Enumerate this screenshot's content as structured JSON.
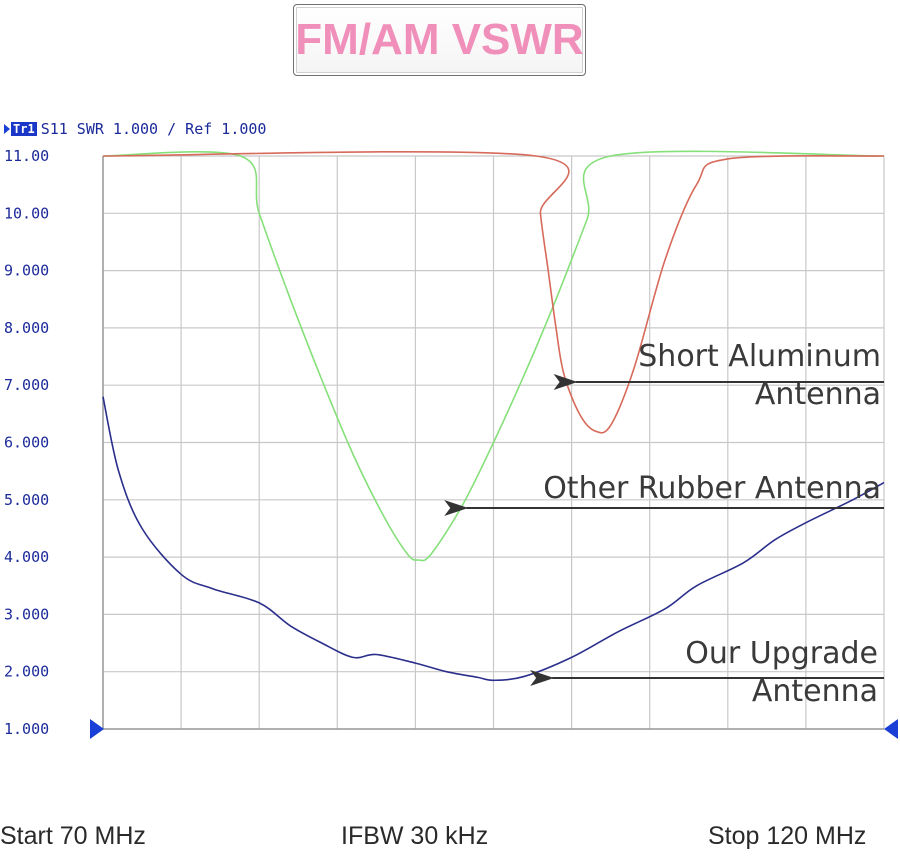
{
  "header": {
    "title": "FM/AM VSWR",
    "trace_tag": "Tr1",
    "trace_label": "S11 SWR 1.000 / Ref 1.000"
  },
  "footer": {
    "start": "Start 70 MHz",
    "ifbw": "IFBW 30 kHz",
    "stop": "Stop 120 MHz"
  },
  "colors": {
    "grid": "#c8c8c8",
    "axis_text": "#1b2a9a",
    "green": "#86e07a",
    "red": "#d76a5a",
    "blue": "#2b2f8c"
  },
  "chart_data": {
    "type": "line",
    "title": "FM/AM VSWR",
    "xlabel": "",
    "ylabel": "",
    "xlim": [
      70,
      120
    ],
    "ylim": [
      1,
      11
    ],
    "ytick_labels": [
      "11.00",
      "10.00",
      "9.000",
      "8.000",
      "7.000",
      "6.000",
      "5.000",
      "4.000",
      "3.000",
      "2.000",
      "1.000"
    ],
    "grid": true,
    "series": [
      {
        "name": "Other Rubber Antenna",
        "color": "#86e07a",
        "points": [
          [
            70,
            11
          ],
          [
            78.8,
            11
          ],
          [
            80,
            10
          ],
          [
            82,
            8.5
          ],
          [
            84,
            7.1
          ],
          [
            86,
            5.8
          ],
          [
            88,
            4.7
          ],
          [
            89.5,
            4.05
          ],
          [
            90.2,
            3.95
          ],
          [
            91,
            4.05
          ],
          [
            93,
            4.9
          ],
          [
            95,
            6.0
          ],
          [
            97,
            7.2
          ],
          [
            99,
            8.5
          ],
          [
            101,
            9.9
          ],
          [
            102.5,
            11
          ],
          [
            120,
            11
          ]
        ]
      },
      {
        "name": "Short Aluminum Antenna",
        "color": "#d76a5a",
        "points": [
          [
            70,
            11
          ],
          [
            97.7,
            11
          ],
          [
            98,
            10
          ],
          [
            98.5,
            9
          ],
          [
            99,
            8
          ],
          [
            99.5,
            7.2
          ],
          [
            100.5,
            6.5
          ],
          [
            101.5,
            6.2
          ],
          [
            102.5,
            6.3
          ],
          [
            104,
            7.3
          ],
          [
            106,
            9.2
          ],
          [
            108,
            10.5
          ],
          [
            110,
            10.95
          ],
          [
            120,
            11
          ]
        ]
      },
      {
        "name": "Our Upgrade Antenna",
        "color": "#2b2f8c",
        "points": [
          [
            70,
            6.8
          ],
          [
            71,
            5.5
          ],
          [
            72.5,
            4.5
          ],
          [
            75,
            3.7
          ],
          [
            77,
            3.45
          ],
          [
            80,
            3.2
          ],
          [
            82,
            2.8
          ],
          [
            84,
            2.5
          ],
          [
            86,
            2.25
          ],
          [
            87.5,
            2.3
          ],
          [
            90,
            2.15
          ],
          [
            92,
            2.0
          ],
          [
            94,
            1.9
          ],
          [
            95,
            1.85
          ],
          [
            97,
            1.92
          ],
          [
            100,
            2.25
          ],
          [
            103,
            2.7
          ],
          [
            106,
            3.1
          ],
          [
            108,
            3.5
          ],
          [
            111,
            3.9
          ],
          [
            113,
            4.3
          ],
          [
            115,
            4.6
          ],
          [
            118,
            5.0
          ],
          [
            120,
            5.3
          ]
        ]
      }
    ],
    "annotations": [
      {
        "lines": [
          "Short Aluminum",
          "Antenna"
        ],
        "x": 100,
        "y": 7.05
      },
      {
        "lines": [
          "Other Rubber Antenna"
        ],
        "x": 93,
        "y": 4.8
      },
      {
        "lines": [
          "Our Upgrade",
          "Antenna"
        ],
        "x": 98.5,
        "y": 1.9
      }
    ]
  }
}
